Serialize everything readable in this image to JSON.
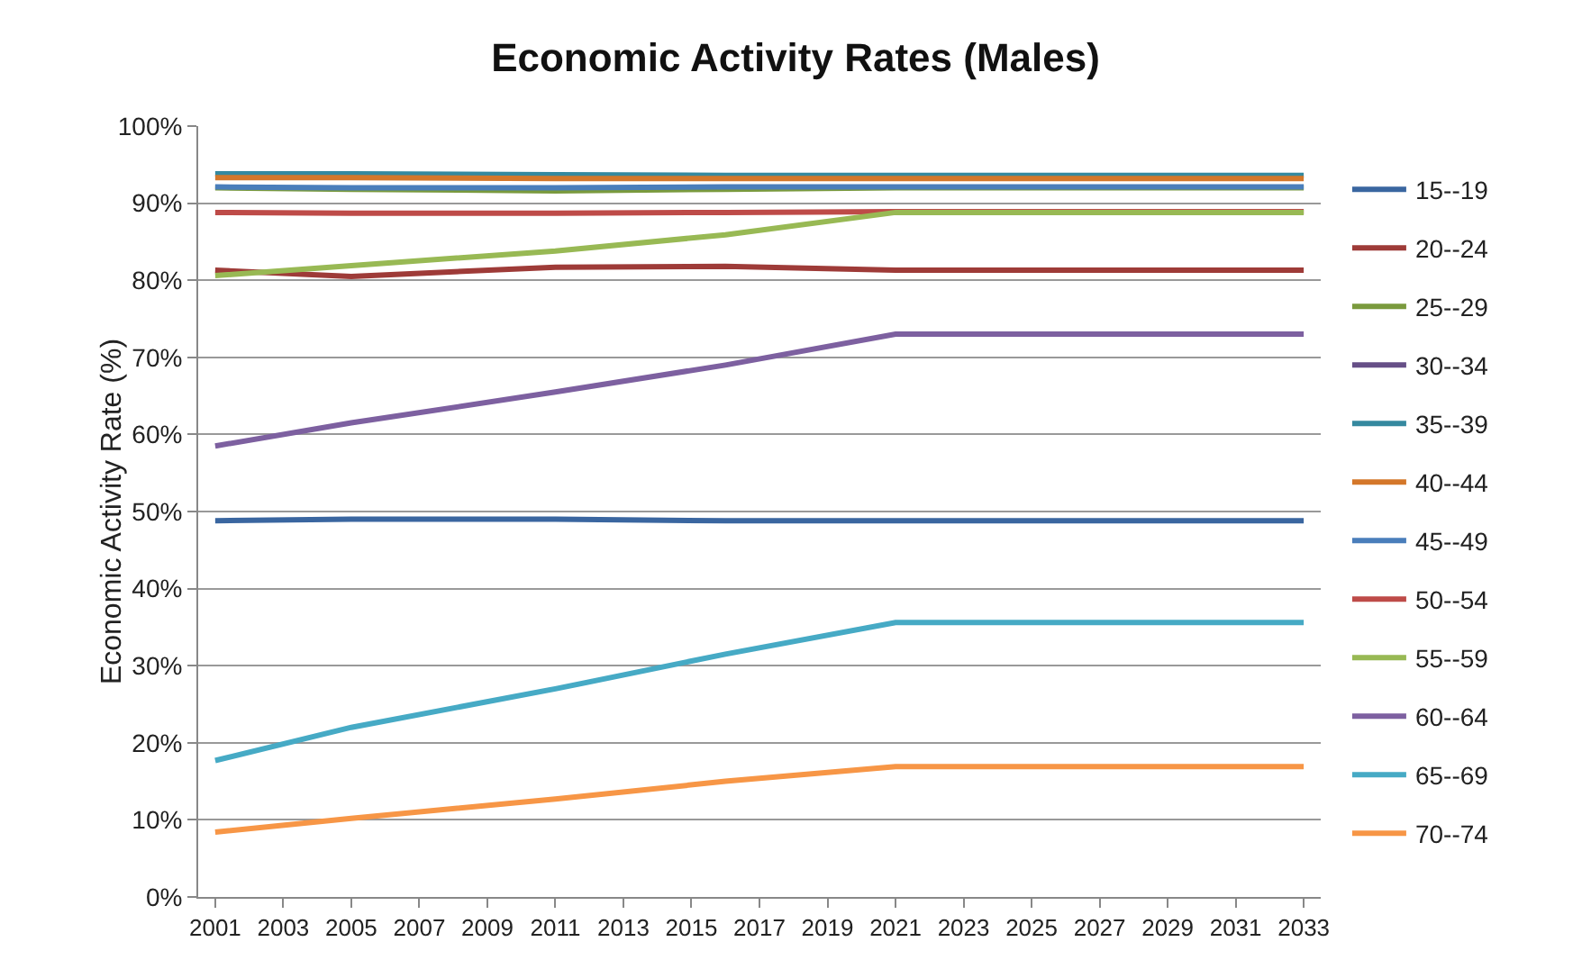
{
  "chart_data": {
    "type": "line",
    "title": "Economic Activity Rates (Males)",
    "ylabel": "Economic Activity Rate (%)",
    "x": [
      2001,
      2005,
      2011,
      2016,
      2021,
      2033
    ],
    "xlim": [
      2000.5,
      2033.5
    ],
    "xticks": [
      2001,
      2003,
      2005,
      2007,
      2009,
      2011,
      2013,
      2015,
      2017,
      2019,
      2021,
      2023,
      2025,
      2027,
      2029,
      2031,
      2033
    ],
    "ylim": [
      0,
      100
    ],
    "yticks": [
      {
        "value": 0,
        "label": "0%"
      },
      {
        "value": 10,
        "label": "10%"
      },
      {
        "value": 20,
        "label": "20%"
      },
      {
        "value": 30,
        "label": "30%"
      },
      {
        "value": 40,
        "label": "40%"
      },
      {
        "value": 50,
        "label": "50%"
      },
      {
        "value": 60,
        "label": "60%"
      },
      {
        "value": 70,
        "label": "70%"
      },
      {
        "value": 80,
        "label": "80%"
      },
      {
        "value": 90,
        "label": "90%"
      },
      {
        "value": 100,
        "label": "100%"
      }
    ],
    "grid": "y",
    "legend": "right",
    "marker": "none",
    "line_style": "solid",
    "series": [
      {
        "name": "15--19",
        "color": "#3a66a0",
        "values": [
          48.8,
          49.0,
          49.0,
          48.8,
          48.8,
          48.8
        ]
      },
      {
        "name": "20--24",
        "color": "#9e3b38",
        "values": [
          81.3,
          80.5,
          81.7,
          81.8,
          81.3,
          81.3
        ]
      },
      {
        "name": "25--29",
        "color": "#7a9a3d",
        "values": [
          92.0,
          91.8,
          91.6,
          91.8,
          92.0,
          92.0
        ]
      },
      {
        "name": "30--34",
        "color": "#664f87",
        "values": [
          null,
          null,
          null,
          null,
          null,
          null
        ]
      },
      {
        "name": "35--39",
        "color": "#35899f",
        "values": [
          93.8,
          93.8,
          93.7,
          93.6,
          93.6,
          93.6
        ]
      },
      {
        "name": "40--44",
        "color": "#d4772a",
        "values": [
          93.3,
          93.3,
          93.2,
          93.2,
          93.2,
          93.2
        ]
      },
      {
        "name": "45--49",
        "color": "#4a7ebb",
        "values": [
          92.1,
          92.0,
          92.0,
          92.1,
          92.1,
          92.1
        ]
      },
      {
        "name": "50--54",
        "color": "#be4b48",
        "values": [
          88.8,
          88.7,
          88.7,
          88.8,
          88.9,
          88.9
        ]
      },
      {
        "name": "55--59",
        "color": "#98b954",
        "values": [
          80.6,
          81.9,
          83.8,
          85.9,
          88.8,
          88.8
        ]
      },
      {
        "name": "60--64",
        "color": "#7d60a0",
        "values": [
          58.5,
          61.5,
          65.5,
          69.0,
          73.0,
          73.0
        ]
      },
      {
        "name": "65--69",
        "color": "#46aac5",
        "values": [
          17.7,
          22.0,
          27.0,
          31.5,
          35.6,
          35.6
        ]
      },
      {
        "name": "70--74",
        "color": "#f79646",
        "values": [
          8.4,
          10.2,
          12.7,
          15.0,
          16.9,
          16.9
        ]
      }
    ]
  }
}
